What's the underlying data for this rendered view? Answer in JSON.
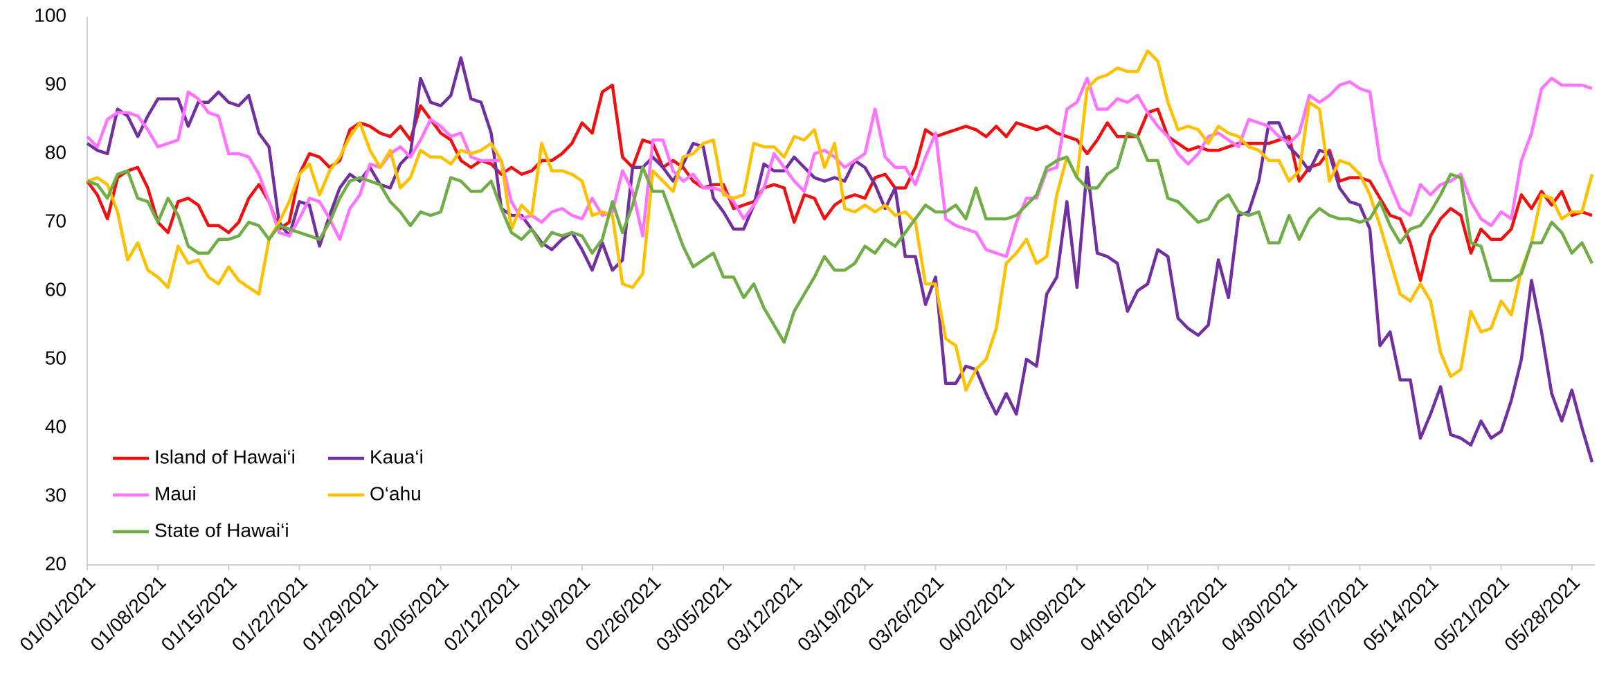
{
  "chart_data": {
    "type": "line",
    "categories": [
      "01/01/2021",
      null,
      null,
      null,
      null,
      null,
      null,
      "01/08/2021",
      null,
      null,
      null,
      null,
      null,
      null,
      "01/15/2021",
      null,
      null,
      null,
      null,
      null,
      null,
      "01/22/2021",
      null,
      null,
      null,
      null,
      null,
      null,
      "01/29/2021",
      null,
      null,
      null,
      null,
      null,
      null,
      "02/05/2021",
      null,
      null,
      null,
      null,
      null,
      null,
      "02/12/2021",
      null,
      null,
      null,
      null,
      null,
      null,
      "02/19/2021",
      null,
      null,
      null,
      null,
      null,
      null,
      "02/26/2021",
      null,
      null,
      null,
      null,
      null,
      null,
      "03/05/2021",
      null,
      null,
      null,
      null,
      null,
      null,
      "03/12/2021",
      null,
      null,
      null,
      null,
      null,
      null,
      "03/19/2021",
      null,
      null,
      null,
      null,
      null,
      null,
      "03/26/2021",
      null,
      null,
      null,
      null,
      null,
      null,
      "04/02/2021",
      null,
      null,
      null,
      null,
      null,
      null,
      "04/09/2021",
      null,
      null,
      null,
      null,
      null,
      null,
      "04/16/2021",
      null,
      null,
      null,
      null,
      null,
      null,
      "04/23/2021",
      null,
      null,
      null,
      null,
      null,
      null,
      "04/30/2021",
      null,
      null,
      null,
      null,
      null,
      null,
      "05/07/2021",
      null,
      null,
      null,
      null,
      null,
      null,
      "05/14/2021",
      null,
      null,
      null,
      null,
      null,
      null,
      "05/21/2021",
      null,
      null,
      null,
      null,
      null,
      null,
      "05/28/2021",
      null,
      null
    ],
    "series": [
      {
        "name": "Island of Hawai‘i",
        "color": "#ee1111",
        "values": [
          76,
          74,
          70.5,
          76.5,
          77.5,
          78,
          75,
          70,
          68.5,
          73,
          73.5,
          72.5,
          69.5,
          69.5,
          68.5,
          70,
          73.5,
          75.5,
          73,
          69,
          70,
          77,
          80,
          79.5,
          78,
          79,
          83.5,
          84.5,
          84,
          83,
          82.5,
          84,
          82,
          87,
          85,
          83,
          82,
          79,
          78,
          79,
          78.5,
          77,
          78,
          77,
          77.5,
          79,
          79,
          80,
          81.5,
          84.5,
          83,
          89,
          90,
          79.5,
          78,
          82,
          81.5,
          78,
          79,
          78,
          76,
          75,
          75.5,
          75.5,
          72,
          72.5,
          73,
          75,
          75.5,
          75,
          70,
          74,
          73.5,
          70.5,
          72.5,
          73.5,
          74,
          73.5,
          76.5,
          77,
          75,
          75,
          78,
          83.5,
          82.5,
          83,
          83.5,
          84,
          83.5,
          82.5,
          84,
          82.5,
          84.5,
          84,
          83.5,
          84,
          83,
          82.5,
          82,
          80,
          82,
          84.5,
          82.5,
          82.5,
          82.5,
          86,
          86.5,
          82.5,
          81.5,
          80.5,
          81,
          80.5,
          80.5,
          81,
          81.5,
          81.5,
          81.5,
          81.5,
          82,
          82.5,
          76,
          78,
          78.5,
          80.5,
          76,
          76.5,
          76.5,
          76,
          73.5,
          71,
          70.5,
          67,
          61.5,
          68,
          70.5,
          72,
          71,
          65.5,
          69,
          67.5,
          67.5,
          69,
          74,
          72,
          74.5,
          72.5,
          74.5,
          71,
          71.5,
          71
        ]
      },
      {
        "name": "Kaua‘i",
        "color": "#7030a0",
        "values": [
          81.5,
          80.5,
          80,
          86.5,
          85.5,
          82.5,
          85.5,
          88,
          88,
          88,
          84,
          87.5,
          87.5,
          89,
          87.5,
          87,
          88.5,
          83,
          81,
          70,
          68,
          73,
          72.5,
          66.5,
          71,
          75,
          77,
          76,
          78,
          75.5,
          75,
          78.5,
          80,
          91,
          87.5,
          87,
          88.5,
          94,
          88,
          87.5,
          83,
          72,
          71,
          71,
          69,
          67,
          66,
          67.5,
          68.5,
          66,
          63,
          67,
          63,
          64.5,
          78,
          78,
          79.5,
          78,
          76,
          78.5,
          81.5,
          81,
          73.5,
          71.5,
          69,
          69,
          72.5,
          78.5,
          77.5,
          77.5,
          79.5,
          78,
          76.5,
          76,
          76.5,
          76,
          79,
          78,
          75.5,
          72,
          75,
          65,
          65,
          58,
          62,
          46.5,
          46.5,
          49,
          48.5,
          45,
          42,
          45,
          42,
          50,
          49,
          59.5,
          62,
          73,
          60.5,
          78,
          65.5,
          65,
          64,
          57,
          60,
          61,
          66,
          65,
          56,
          54.5,
          53.5,
          55,
          64.5,
          59,
          71,
          71.5,
          76,
          84.5,
          84.5,
          81,
          79.5,
          77.5,
          80.5,
          80,
          75,
          73,
          72.5,
          69,
          52,
          54,
          47,
          47,
          38.5,
          42,
          46,
          39,
          38.5,
          37.5,
          41,
          38.5,
          39.5,
          44,
          50,
          61.5,
          54,
          45,
          41,
          45.5,
          40,
          35
        ]
      },
      {
        "name": "Maui",
        "color": "#ff73ff",
        "values": [
          82.5,
          81,
          85,
          86,
          86,
          85.5,
          83.5,
          81,
          81.5,
          82,
          89,
          88,
          86,
          85.5,
          80,
          80,
          79.5,
          77,
          73,
          68.5,
          68,
          70.5,
          73.5,
          73,
          70.5,
          67.5,
          72,
          74,
          78.5,
          78,
          80,
          81,
          79.5,
          82,
          85,
          84,
          82.5,
          83,
          79.5,
          79,
          79,
          79,
          73,
          70.5,
          71,
          70,
          71.5,
          72,
          71,
          70.5,
          73.5,
          71,
          71.5,
          77.5,
          74.5,
          68,
          82,
          82,
          77.5,
          76,
          77,
          75,
          75,
          74.5,
          73,
          70.5,
          72.5,
          75,
          80,
          78,
          76,
          74.5,
          80,
          80.5,
          79.5,
          78,
          79,
          80,
          86.5,
          79.5,
          78,
          78,
          75.5,
          79.5,
          83,
          70.5,
          69.5,
          69,
          68.5,
          66,
          65.5,
          65,
          70,
          73.5,
          73.5,
          77.5,
          78,
          86.5,
          87.5,
          91,
          86.5,
          86.5,
          88,
          87.5,
          88.5,
          86,
          84,
          82.5,
          80,
          78.5,
          80,
          82.5,
          83,
          82,
          81,
          85,
          84.5,
          84,
          82.5,
          81.5,
          83,
          88.5,
          87.5,
          88.5,
          90,
          90.5,
          89.5,
          89,
          79,
          75.5,
          72,
          71,
          75.5,
          74,
          75.5,
          76,
          77,
          73,
          70.5,
          69.5,
          71.5,
          70.5,
          79,
          83,
          89.5,
          91,
          90,
          90,
          90,
          89.5
        ]
      },
      {
        "name": "O‘ahu",
        "color": "#ffc000",
        "values": [
          76,
          76.5,
          75.5,
          71.5,
          64.5,
          67,
          63,
          62,
          60.5,
          66.5,
          64,
          64.5,
          62,
          61,
          63.5,
          61.5,
          60.5,
          59.5,
          67.5,
          70,
          73,
          77,
          78.5,
          74,
          77.5,
          79.5,
          82.5,
          84.5,
          80.5,
          78,
          80.5,
          75,
          76.5,
          80.5,
          79.5,
          79.5,
          78.5,
          80.5,
          80,
          80.5,
          81.5,
          79,
          69,
          72.5,
          71,
          81.5,
          77.5,
          77.5,
          77,
          76,
          71,
          71.5,
          71,
          61,
          60.5,
          62.5,
          77.5,
          76,
          74.5,
          79.5,
          80,
          81.5,
          82,
          74,
          73.5,
          74,
          81.5,
          81,
          81,
          79.5,
          82.5,
          82,
          83.5,
          78,
          81.5,
          72,
          71.5,
          72.5,
          71.5,
          72.5,
          71,
          71.5,
          70,
          61,
          61,
          53,
          52,
          45.5,
          48.5,
          50,
          54.5,
          64,
          65.5,
          67.5,
          64,
          65,
          74,
          79.5,
          76.5,
          89.5,
          91,
          91.5,
          92.5,
          92,
          92,
          95,
          93.5,
          87.5,
          83.5,
          84,
          83.5,
          81.5,
          84,
          83,
          82.5,
          81,
          80.5,
          79,
          79,
          76,
          77.5,
          87.5,
          86.5,
          76,
          79,
          78.5,
          77,
          74,
          69.5,
          64.5,
          59.5,
          58.5,
          61,
          58.5,
          51,
          47.5,
          48.5,
          57,
          54,
          54.5,
          58.5,
          56.5,
          63,
          67,
          74,
          73.5,
          70.5,
          71.5,
          71.5,
          77
        ]
      },
      {
        "name": "State of Hawai‘i",
        "color": "#70ad47",
        "values": [
          76,
          75.5,
          73.5,
          77,
          77.5,
          73.5,
          73,
          70,
          73.5,
          71,
          66.5,
          65.5,
          65.5,
          67.5,
          67.5,
          68,
          70,
          69.5,
          67.5,
          69.5,
          69,
          68.5,
          68,
          67.5,
          70,
          73.5,
          76,
          76.5,
          76,
          75.5,
          73,
          71.5,
          69.5,
          71.5,
          71,
          71.5,
          76.5,
          76,
          74.5,
          74.5,
          76,
          72,
          68.5,
          67.5,
          69,
          66.5,
          68.5,
          68,
          68.5,
          68,
          65.5,
          67.5,
          73,
          68.5,
          72.5,
          78,
          74.5,
          74.5,
          70.5,
          66.5,
          63.5,
          64.5,
          65.5,
          62,
          62,
          59,
          61,
          57.5,
          55,
          52.5,
          57,
          59.5,
          62,
          65,
          63,
          63,
          64,
          66.5,
          65.5,
          67.5,
          66.5,
          68.5,
          70.5,
          72.5,
          71.5,
          71.5,
          72.5,
          70.5,
          75,
          70.5,
          70.5,
          70.5,
          71,
          72.5,
          74,
          78,
          79,
          79.5,
          76.5,
          75,
          75,
          77,
          78,
          83,
          82.5,
          79,
          79,
          73.5,
          73,
          71.5,
          70,
          70.5,
          73,
          74,
          71.5,
          71,
          71.5,
          67,
          67,
          71,
          67.5,
          70.5,
          72,
          71,
          70.5,
          70.5,
          70,
          70.5,
          73,
          69.5,
          67,
          69,
          69.5,
          71.5,
          74,
          77,
          76.5,
          67,
          66.5,
          61.5,
          61.5,
          61.5,
          62.5,
          67,
          67,
          70,
          68.5,
          65.5,
          67,
          64
        ]
      }
    ],
    "ylim": [
      20,
      100
    ],
    "yticks": [
      20,
      30,
      40,
      50,
      60,
      70,
      80,
      90,
      100
    ],
    "grid": false,
    "legend": "lower left"
  }
}
